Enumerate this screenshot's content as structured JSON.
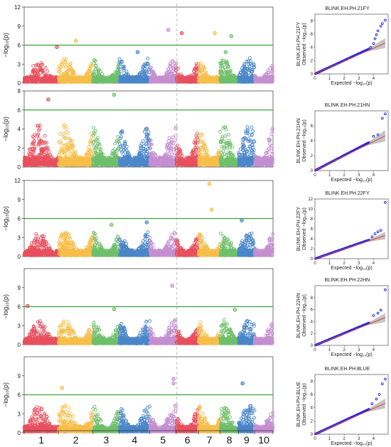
{
  "chromosomes": {
    "labels": [
      "1",
      "2",
      "3",
      "4",
      "5",
      "6",
      "7",
      "8",
      "9",
      "10"
    ],
    "colors": [
      "#e8505e",
      "#f7be4a",
      "#6fbf6b",
      "#4a86c8",
      "#c58fd1",
      "#e8505e",
      "#f7be4a",
      "#6fbf6b",
      "#4a86c8",
      "#c58fd1"
    ]
  },
  "threshold_color": "#3aa13a",
  "qq_line_color": "#e0413a",
  "qq_point_color": "#1b22e0",
  "chart_data": [
    {
      "type": "scatter",
      "kind": "manhattan",
      "ylabel": "−log₁₀(p)",
      "ylim": [
        0,
        12
      ],
      "yticks": [
        "0",
        "3",
        "6",
        "9",
        "12"
      ],
      "threshold": 6,
      "outliers": [
        {
          "chr": 1,
          "pos": 0.95,
          "y": 5.7
        },
        {
          "chr": 2,
          "pos": 0.5,
          "y": 6.7
        },
        {
          "chr": 4,
          "pos": 0.6,
          "y": 4.9
        },
        {
          "chr": 5,
          "pos": 0.7,
          "y": 8.4
        },
        {
          "chr": 6,
          "pos": 0.25,
          "y": 7.9
        },
        {
          "chr": 7,
          "pos": 0.75,
          "y": 7.9
        },
        {
          "chr": 8,
          "pos": 0.6,
          "y": 7.4
        },
        {
          "chr": 8,
          "pos": 0.3,
          "y": 4.9
        }
      ],
      "qq": {
        "title": "BLINK.EH.PH.21FY",
        "xlabel": "Expected −log₁₀(p)",
        "ylabel": "Observed −log₁₀(p)",
        "xmax": 5,
        "ymax": 9,
        "xticks": [
          "0",
          "1",
          "2",
          "3",
          "4"
        ],
        "yticks": [
          "0",
          "2",
          "4",
          "6",
          "8"
        ],
        "tail": [
          [
            3.8,
            4.0
          ],
          [
            4.0,
            4.6
          ],
          [
            4.1,
            5.3
          ],
          [
            4.2,
            5.9
          ],
          [
            4.3,
            6.5
          ],
          [
            4.5,
            7.2
          ],
          [
            4.6,
            7.6
          ],
          [
            4.8,
            8.1
          ]
        ]
      }
    },
    {
      "type": "scatter",
      "kind": "manhattan",
      "ylabel": "−log₁₀(p)",
      "ylim": [
        0,
        8
      ],
      "yticks": [
        "0",
        "2",
        "4",
        "6",
        "8"
      ],
      "threshold": 6,
      "outliers": [
        {
          "chr": 1,
          "pos": 0.7,
          "y": 7.1
        },
        {
          "chr": 3,
          "pos": 0.8,
          "y": 7.6
        }
      ],
      "qq": {
        "title": "BLINK.EH.PH.21HN",
        "xlabel": "Expected −log₁₀(p)",
        "ylabel": "Observed −log₁₀(p)",
        "xmax": 5,
        "ymax": 8,
        "xticks": [
          "0",
          "1",
          "2",
          "3",
          "4"
        ],
        "yticks": [
          "0",
          "2",
          "4",
          "6"
        ],
        "tail": [
          [
            4.0,
            4.6
          ],
          [
            4.3,
            4.8
          ],
          [
            4.6,
            7.0
          ],
          [
            4.8,
            7.6
          ]
        ]
      }
    },
    {
      "type": "scatter",
      "kind": "manhattan",
      "ylabel": "−log₁₀(p)",
      "ylim": [
        0,
        12
      ],
      "yticks": [
        "0",
        "3",
        "6",
        "9",
        "12"
      ],
      "threshold": 6,
      "outliers": [
        {
          "chr": 7,
          "pos": 0.5,
          "y": 11.5
        },
        {
          "chr": 7,
          "pos": 0.6,
          "y": 7.4
        },
        {
          "chr": 9,
          "pos": 0.2,
          "y": 5.7
        },
        {
          "chr": 4,
          "pos": 0.9,
          "y": 5.4
        },
        {
          "chr": 3,
          "pos": 0.7,
          "y": 5.0
        }
      ],
      "qq": {
        "title": "BLINK.EH.PH.22FY",
        "xlabel": "Expected −log₁₀(p)",
        "ylabel": "Observed −log₁₀(p)",
        "xmax": 5,
        "ymax": 12,
        "xticks": [
          "0",
          "1",
          "2",
          "3",
          "4"
        ],
        "yticks": [
          "0",
          "2",
          "4",
          "6",
          "8",
          "10",
          "12"
        ],
        "tail": [
          [
            3.9,
            4.4
          ],
          [
            4.1,
            5.0
          ],
          [
            4.3,
            5.4
          ],
          [
            4.5,
            5.7
          ],
          [
            4.8,
            11.3
          ]
        ]
      }
    },
    {
      "type": "scatter",
      "kind": "manhattan",
      "ylabel": "−log₁₀(p)",
      "ylim": [
        0,
        12
      ],
      "yticks": [
        "0",
        "3",
        "6",
        "9"
      ],
      "threshold": 6,
      "outliers": [
        {
          "chr": 5,
          "pos": 0.85,
          "y": 9.3
        },
        {
          "chr": 1,
          "pos": 0.1,
          "y": 6.1
        },
        {
          "chr": 3,
          "pos": 0.8,
          "y": 5.6
        },
        {
          "chr": 8,
          "pos": 0.8,
          "y": 5.5
        }
      ],
      "qq": {
        "title": "BLINK.EH.PH.22HN",
        "xlabel": "Expected −log₁₀(p)",
        "ylabel": "Observed −log₁₀(p)",
        "xmax": 5,
        "ymax": 10,
        "xticks": [
          "0",
          "1",
          "2",
          "3",
          "4"
        ],
        "yticks": [
          "0",
          "2",
          "4",
          "6",
          "8"
        ],
        "tail": [
          [
            4.0,
            5.0
          ],
          [
            4.3,
            5.4
          ],
          [
            4.5,
            5.9
          ],
          [
            4.8,
            9.3
          ]
        ]
      }
    },
    {
      "type": "scatter",
      "kind": "manhattan",
      "ylabel": "−log₁₀(p)",
      "ylim": [
        0,
        12
      ],
      "yticks": [
        "0",
        "3",
        "6",
        "9"
      ],
      "threshold": 6,
      "outliers": [
        {
          "chr": 5,
          "pos": 0.9,
          "y": 8.5
        },
        {
          "chr": 5,
          "pos": 0.9,
          "y": 7.8
        },
        {
          "chr": 2,
          "pos": 0.1,
          "y": 7.1
        },
        {
          "chr": 9,
          "pos": 0.25,
          "y": 7.8
        }
      ],
      "qq": {
        "title": "BLINK.EH.PH.BLUE",
        "xlabel": "Expected −log₁₀(p)",
        "ylabel": "Observed −log₁₀(p)",
        "xmax": 5,
        "ymax": 9,
        "xticks": [
          "0",
          "1",
          "2",
          "3",
          "4"
        ],
        "yticks": [
          "0",
          "2",
          "4",
          "6",
          "8"
        ],
        "tail": [
          [
            3.9,
            4.6
          ],
          [
            4.2,
            5.3
          ],
          [
            4.4,
            6.0
          ],
          [
            4.6,
            7.6
          ],
          [
            4.8,
            8.3
          ]
        ]
      }
    }
  ]
}
